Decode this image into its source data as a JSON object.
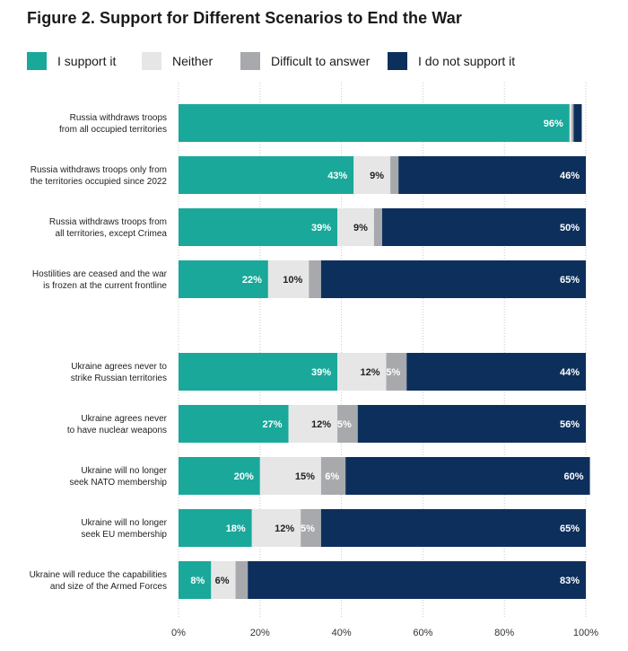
{
  "title": "Figure 2. Support for Different Scenarios to End the War",
  "colors": {
    "support": "#1aa89a",
    "neither": "#e6e6e6",
    "difficult": "#a7a9ac",
    "not_support": "#0d2f5c"
  },
  "chart_data": {
    "type": "bar",
    "orientation": "horizontal",
    "stacked": true,
    "title": "Figure 2. Support for Different Scenarios to End the War",
    "xlim": [
      0,
      100
    ],
    "x_ticks": [
      "0%",
      "20%",
      "40%",
      "60%",
      "80%",
      "100%"
    ],
    "legend_position": "top",
    "series": [
      {
        "name": "I support it",
        "key": "support"
      },
      {
        "name": "Neither",
        "key": "neither"
      },
      {
        "name": "Difficult to answer",
        "key": "difficult"
      },
      {
        "name": "I do not support it",
        "key": "not_support"
      }
    ],
    "categories": [
      {
        "label": [
          "Russia withdraws troops",
          "from all occupied territories"
        ],
        "values": [
          96,
          0.5,
          0.5,
          2
        ],
        "labels": [
          "96%",
          "",
          "",
          ""
        ]
      },
      {
        "label": [
          "Russia withdraws troops only from",
          "the territories occupied since 2022"
        ],
        "values": [
          43,
          9,
          2,
          46
        ],
        "labels": [
          "43%",
          "9%",
          "",
          "46%"
        ]
      },
      {
        "label": [
          "Russia withdraws troops from",
          "all territories, except Crimea"
        ],
        "values": [
          39,
          9,
          2,
          50
        ],
        "labels": [
          "39%",
          "9%",
          "",
          "50%"
        ]
      },
      {
        "label": [
          "Hostilities are ceased and the war",
          "is frozen at the current frontline"
        ],
        "values": [
          22,
          10,
          3,
          65
        ],
        "labels": [
          "22%",
          "10%",
          "",
          "65%"
        ]
      },
      {
        "label": [
          "Ukraine agrees never to",
          "strike Russian territories"
        ],
        "values": [
          39,
          12,
          5,
          44
        ],
        "labels": [
          "39%",
          "12%",
          "5%",
          "44%"
        ]
      },
      {
        "label": [
          "Ukraine agrees never",
          "to have nuclear weapons"
        ],
        "values": [
          27,
          12,
          5,
          56
        ],
        "labels": [
          "27%",
          "12%",
          "5%",
          "56%"
        ]
      },
      {
        "label": [
          "Ukraine will no longer",
          "seek NATO membership"
        ],
        "values": [
          20,
          15,
          6,
          60
        ],
        "labels": [
          "20%",
          "15%",
          "6%",
          "60%"
        ]
      },
      {
        "label": [
          "Ukraine will no longer",
          "seek EU membership"
        ],
        "values": [
          18,
          12,
          5,
          65
        ],
        "labels": [
          "18%",
          "12%",
          "5%",
          "65%"
        ]
      },
      {
        "label": [
          "Ukraine will reduce the capabilities",
          "and size of the Armed Forces"
        ],
        "values": [
          8,
          6,
          3,
          83
        ],
        "labels": [
          "8%",
          "6%",
          "",
          "83%"
        ]
      }
    ]
  }
}
